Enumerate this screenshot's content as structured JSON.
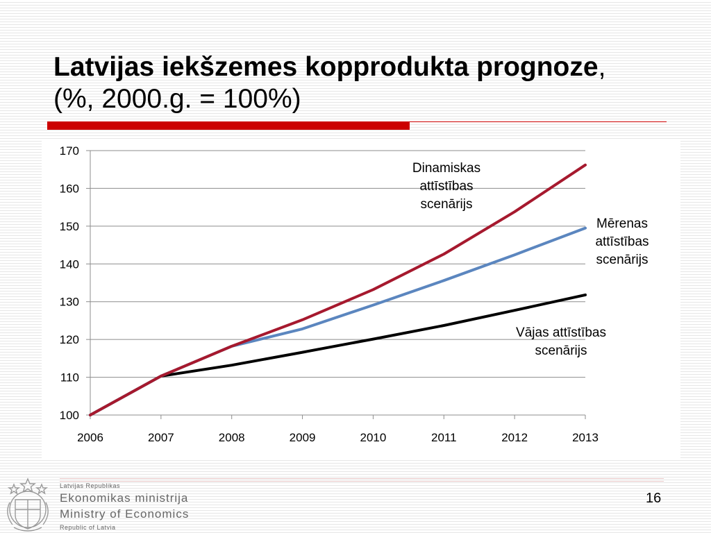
{
  "title": {
    "bold_part": "Latvijas iekšzemes kopprodukta prognoze",
    "normal_part": ", (%, 2000.g. = 100%)"
  },
  "chart_data": {
    "type": "line",
    "x": [
      "2006",
      "2007",
      "2008",
      "2009",
      "2010",
      "2011",
      "2012",
      "2013"
    ],
    "ylim": [
      100,
      170
    ],
    "yticks": [
      "100",
      "110",
      "120",
      "130",
      "140",
      "150",
      "160",
      "170"
    ],
    "grid": true,
    "series": [
      {
        "name": "Dinamiskas attīstības scenārijs",
        "label_lines": [
          "Dinamiskas",
          "attīstības",
          "scenārijs"
        ],
        "color": "#a6192e",
        "values": [
          100,
          110.3,
          118.2,
          125.2,
          133.2,
          142.6,
          153.8,
          166.2
        ]
      },
      {
        "name": "Mērenas attīstības scenārijs",
        "label_lines": [
          "Mērenas",
          "attīstības",
          "scenārijs"
        ],
        "color": "#5b86bf",
        "values": [
          100,
          110.3,
          118.2,
          122.8,
          129.1,
          135.6,
          142.4,
          149.5
        ]
      },
      {
        "name": "Vājas attīstības scenārijs",
        "label_lines": [
          "Vājas attīstības",
          "scenārijs"
        ],
        "color": "#000000",
        "values": [
          100,
          110.3,
          113.2,
          116.6,
          120.1,
          123.7,
          127.7,
          131.8
        ]
      }
    ]
  },
  "footer": {
    "small_top": "Latvijas Republikas",
    "ministry_lv": "Ekonomikas ministrija",
    "ministry_en": "Ministry of Economics",
    "small_bottom": "Republic of Latvia",
    "slide_number": "16",
    "logo_icon": "latvia-coat-of-arms-icon"
  }
}
